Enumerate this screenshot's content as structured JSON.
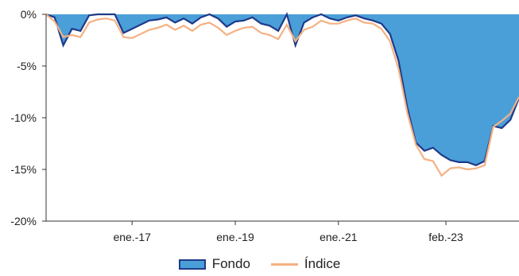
{
  "chart_data": {
    "type": "area",
    "title": "",
    "xlabel": "",
    "ylabel": "",
    "x_range": [
      "2015-05",
      "2024-07"
    ],
    "ylim": [
      -20,
      0
    ],
    "y_ticks": [
      0,
      -5,
      -10,
      -15,
      -20
    ],
    "y_tick_labels": [
      "0%",
      "-5%",
      "-10%",
      "-15%",
      "-20%"
    ],
    "x_ticks": [
      "2017-01",
      "2019-01",
      "2021-01",
      "2023-02"
    ],
    "x_tick_labels": [
      "ene.-17",
      "ene.-19",
      "ene.-21",
      "feb.-23"
    ],
    "grid": false,
    "legend_position": "bottom",
    "x": [
      "2015-05",
      "2015-07",
      "2015-09",
      "2015-11",
      "2016-01",
      "2016-03",
      "2016-05",
      "2016-07",
      "2016-09",
      "2016-11",
      "2017-01",
      "2017-03",
      "2017-05",
      "2017-07",
      "2017-09",
      "2017-11",
      "2018-01",
      "2018-03",
      "2018-05",
      "2018-07",
      "2018-09",
      "2018-11",
      "2019-01",
      "2019-03",
      "2019-05",
      "2019-07",
      "2019-09",
      "2019-11",
      "2020-01",
      "2020-03",
      "2020-05",
      "2020-07",
      "2020-09",
      "2020-11",
      "2021-01",
      "2021-03",
      "2021-05",
      "2021-07",
      "2021-09",
      "2021-11",
      "2022-01",
      "2022-03",
      "2022-05",
      "2022-07",
      "2022-09",
      "2022-11",
      "2023-01",
      "2023-03",
      "2023-05",
      "2023-07",
      "2023-09",
      "2023-11",
      "2024-01",
      "2024-03",
      "2024-05",
      "2024-07"
    ],
    "series": [
      {
        "name": "Fondo",
        "style": "area",
        "fill_color": "#4a9fd8",
        "edge_color": "#1f3a8a",
        "values": [
          0,
          -0.3,
          -3.0,
          -1.4,
          -1.6,
          -0.1,
          0,
          0,
          0,
          -1.8,
          -1.4,
          -1.0,
          -0.6,
          -0.5,
          -0.3,
          -0.8,
          -0.4,
          -0.9,
          -0.3,
          0,
          -0.4,
          -1.2,
          -0.7,
          -0.6,
          -0.3,
          -0.9,
          -1.1,
          -1.6,
          0,
          -3.0,
          -0.8,
          -0.3,
          0,
          -0.4,
          -0.6,
          -0.3,
          -0.1,
          -0.4,
          -0.6,
          -0.9,
          -1.9,
          -4.5,
          -9.0,
          -12.4,
          -13.2,
          -12.9,
          -13.6,
          -14.1,
          -14.3,
          -14.3,
          -14.6,
          -14.2,
          -10.8,
          -11.0,
          -10.2,
          -8.1
        ]
      },
      {
        "name": "Índice",
        "style": "line",
        "color": "#f5b183",
        "values": [
          0,
          -0.7,
          -2.2,
          -2.0,
          -2.2,
          -0.8,
          -0.5,
          -0.4,
          -0.6,
          -2.2,
          -2.3,
          -1.9,
          -1.5,
          -1.3,
          -1.0,
          -1.5,
          -1.1,
          -1.6,
          -1.0,
          -0.8,
          -1.3,
          -2.0,
          -1.6,
          -1.3,
          -1.2,
          -1.8,
          -2.0,
          -2.4,
          -1.0,
          -2.6,
          -1.5,
          -1.2,
          -0.6,
          -0.9,
          -0.9,
          -0.6,
          -0.4,
          -0.8,
          -0.9,
          -1.4,
          -2.6,
          -5.3,
          -9.5,
          -12.6,
          -14.0,
          -14.2,
          -15.6,
          -14.9,
          -14.8,
          -15.0,
          -14.9,
          -14.6,
          -10.9,
          -10.3,
          -9.6,
          -8.0
        ]
      }
    ]
  },
  "legend": {
    "fondo_label": "Fondo",
    "indice_label": "Índice"
  }
}
